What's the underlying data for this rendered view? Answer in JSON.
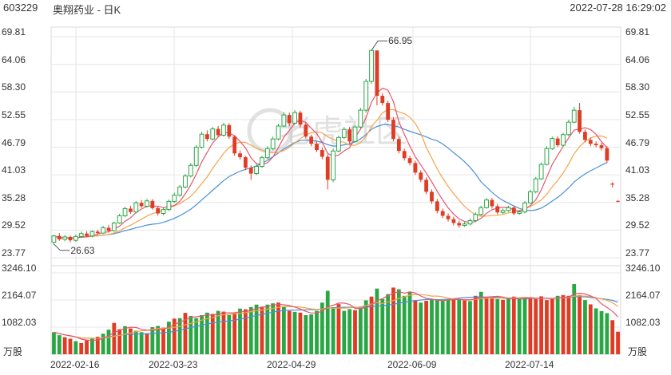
{
  "header": {
    "code": "603229",
    "name": "奥翔药业 - 日K",
    "timestamp": "2022-07-28 16:29:02"
  },
  "watermark": "老虎社区",
  "colors": {
    "up": "#e03b24",
    "down": "#2aa745",
    "ma5": "#e8556b",
    "ma10": "#f2a44b",
    "ma20": "#4a90d9",
    "grid": "#e6e6e6"
  },
  "chart_data": {
    "type": "candlestick",
    "price_axis": {
      "labels": [
        "69.81",
        "64.06",
        "58.30",
        "52.55",
        "46.79",
        "41.03",
        "35.28",
        "29.52",
        "23.77"
      ],
      "max": 69.81,
      "min": 23.77
    },
    "volume_axis": {
      "labels": [
        "3246.10",
        "2164.07",
        "1082.03"
      ],
      "max": 3246.1,
      "unit": "万股"
    },
    "x_labels": [
      "2022-02-16",
      "2022-03-23",
      "2022-04-29",
      "2022-06-09",
      "2022-07-14"
    ],
    "annotations": [
      {
        "label": "66.95",
        "value": 66.95
      },
      {
        "label": "26.63",
        "value": 26.63
      }
    ],
    "candles": [
      [
        27.0,
        28.3,
        28.6,
        26.63
      ],
      [
        28.3,
        27.6,
        28.9,
        27.3
      ],
      [
        27.6,
        28.1,
        28.5,
        27.2
      ],
      [
        28.1,
        27.4,
        28.4,
        27.0
      ],
      [
        27.4,
        28.2,
        28.6,
        27.1
      ],
      [
        28.2,
        28.8,
        29.2,
        27.9
      ],
      [
        28.8,
        28.3,
        29.3,
        28.0
      ],
      [
        28.3,
        29.2,
        29.5,
        28.0
      ],
      [
        29.2,
        28.9,
        29.6,
        28.5
      ],
      [
        28.9,
        30.0,
        30.4,
        28.7
      ],
      [
        30.0,
        29.4,
        30.6,
        29.0
      ],
      [
        29.4,
        31.0,
        31.3,
        29.2
      ],
      [
        31.0,
        32.5,
        32.9,
        30.8
      ],
      [
        32.5,
        34.0,
        34.4,
        32.2
      ],
      [
        34.0,
        33.3,
        34.6,
        32.9
      ],
      [
        33.3,
        35.2,
        35.6,
        33.0
      ],
      [
        35.2,
        34.5,
        35.8,
        34.1
      ],
      [
        34.5,
        35.6,
        36.0,
        34.2
      ],
      [
        35.6,
        34.1,
        36.0,
        33.8
      ],
      [
        34.1,
        33.0,
        34.5,
        32.5
      ],
      [
        33.0,
        33.8,
        34.3,
        32.6
      ],
      [
        33.8,
        35.5,
        35.9,
        33.5
      ],
      [
        35.5,
        36.8,
        37.3,
        35.2
      ],
      [
        36.8,
        38.5,
        38.9,
        36.5
      ],
      [
        38.5,
        40.8,
        41.2,
        38.2
      ],
      [
        40.8,
        43.0,
        43.5,
        40.5
      ],
      [
        43.0,
        46.8,
        47.2,
        42.7
      ],
      [
        46.8,
        49.5,
        50.0,
        46.5
      ],
      [
        49.5,
        48.5,
        50.3,
        48.0
      ],
      [
        48.5,
        50.6,
        51.0,
        48.2
      ],
      [
        50.6,
        49.3,
        51.2,
        48.9
      ],
      [
        49.3,
        51.4,
        51.9,
        49.0
      ],
      [
        51.4,
        49.0,
        51.8,
        48.5
      ],
      [
        49.0,
        45.5,
        49.3,
        45.0
      ],
      [
        45.5,
        44.7,
        46.1,
        44.2
      ],
      [
        44.7,
        42.5,
        45.0,
        42.0
      ],
      [
        42.5,
        41.3,
        43.0,
        40.0
      ],
      [
        41.3,
        42.8,
        43.3,
        41.0
      ],
      [
        42.8,
        44.6,
        45.0,
        42.5
      ],
      [
        44.6,
        46.5,
        47.0,
        44.3
      ],
      [
        46.5,
        48.5,
        49.0,
        46.2
      ],
      [
        48.5,
        51.2,
        51.7,
        48.2
      ],
      [
        51.2,
        53.5,
        54.1,
        51.0
      ],
      [
        53.5,
        51.8,
        54.0,
        51.2
      ],
      [
        51.8,
        54.0,
        54.5,
        51.5
      ],
      [
        54.0,
        51.5,
        54.4,
        50.9
      ],
      [
        51.5,
        49.0,
        52.0,
        48.6
      ],
      [
        49.0,
        47.5,
        49.4,
        47.0
      ],
      [
        47.5,
        46.2,
        48.0,
        45.8
      ],
      [
        46.2,
        44.8,
        46.7,
        44.3
      ],
      [
        44.8,
        40.0,
        45.3,
        38.0
      ],
      [
        40.0,
        46.0,
        46.5,
        39.5
      ],
      [
        46.0,
        48.8,
        49.2,
        45.7
      ],
      [
        48.8,
        50.5,
        51.0,
        48.5
      ],
      [
        50.5,
        48.0,
        51.0,
        47.5
      ],
      [
        48.0,
        51.0,
        51.4,
        47.8
      ],
      [
        51.0,
        54.5,
        55.0,
        50.7
      ],
      [
        54.5,
        60.5,
        61.0,
        54.0
      ],
      [
        60.5,
        66.95,
        66.95,
        60.0
      ],
      [
        66.95,
        57.5,
        66.5,
        55.5
      ],
      [
        57.5,
        56.0,
        58.0,
        55.5
      ],
      [
        56.0,
        52.5,
        56.5,
        52.0
      ],
      [
        52.5,
        48.5,
        53.0,
        48.0
      ],
      [
        48.5,
        46.0,
        49.0,
        45.5
      ],
      [
        46.0,
        44.5,
        46.5,
        44.0
      ],
      [
        44.5,
        43.5,
        45.0,
        43.0
      ],
      [
        43.5,
        41.5,
        44.0,
        41.0
      ],
      [
        41.5,
        40.0,
        42.0,
        39.5
      ],
      [
        40.0,
        37.5,
        40.5,
        37.0
      ],
      [
        37.5,
        35.5,
        38.0,
        35.0
      ],
      [
        35.5,
        33.5,
        36.0,
        33.0
      ],
      [
        33.5,
        32.5,
        34.0,
        32.0
      ],
      [
        32.5,
        31.8,
        33.0,
        31.3
      ],
      [
        31.8,
        31.0,
        32.3,
        30.5
      ],
      [
        31.0,
        30.5,
        31.5,
        30.0
      ],
      [
        30.5,
        30.8,
        31.2,
        30.2
      ],
      [
        30.8,
        31.5,
        31.9,
        30.5
      ],
      [
        31.5,
        32.8,
        33.2,
        31.2
      ],
      [
        32.8,
        34.2,
        34.6,
        32.5
      ],
      [
        34.2,
        35.8,
        36.2,
        34.0
      ],
      [
        35.8,
        34.5,
        36.2,
        34.0
      ],
      [
        34.5,
        33.2,
        35.0,
        32.8
      ],
      [
        33.2,
        33.6,
        34.0,
        32.9
      ],
      [
        33.6,
        34.2,
        34.6,
        33.3
      ],
      [
        34.2,
        33.0,
        34.6,
        32.6
      ],
      [
        33.0,
        33.3,
        33.7,
        32.7
      ],
      [
        33.3,
        35.2,
        35.6,
        33.0
      ],
      [
        35.2,
        37.5,
        37.9,
        35.0
      ],
      [
        37.5,
        40.2,
        40.6,
        37.2
      ],
      [
        40.2,
        43.2,
        43.6,
        40.0
      ],
      [
        43.2,
        46.5,
        47.0,
        43.0
      ],
      [
        46.5,
        48.6,
        49.0,
        46.2
      ],
      [
        48.6,
        47.2,
        49.1,
        46.8
      ],
      [
        47.2,
        49.4,
        49.8,
        46.9
      ],
      [
        49.4,
        52.0,
        52.5,
        49.1
      ],
      [
        52.0,
        54.5,
        55.2,
        51.8
      ],
      [
        54.5,
        50.0,
        56.0,
        49.6
      ],
      [
        50.0,
        48.3,
        50.5,
        47.8
      ],
      [
        48.3,
        47.5,
        48.8,
        47.0
      ],
      [
        47.5,
        47.2,
        48.0,
        46.8
      ],
      [
        47.2,
        46.6,
        47.7,
        46.1
      ],
      [
        46.6,
        44.0,
        47.0,
        43.5
      ],
      [
        39.2,
        39.0,
        39.5,
        38.4
      ],
      [
        35.6,
        35.5,
        35.8,
        35.3
      ]
    ],
    "volume": [
      880,
      760,
      680,
      620,
      520,
      450,
      560,
      620,
      700,
      820,
      980,
      1250,
      1000,
      1120,
      1030,
      940,
      880,
      840,
      1080,
      1130,
      1060,
      1300,
      1420,
      1440,
      1650,
      1530,
      1440,
      1560,
      1660,
      1610,
      1730,
      1700,
      1560,
      1670,
      1820,
      1790,
      1880,
      1980,
      1900,
      1980,
      2030,
      2060,
      1900,
      1730,
      1690,
      1660,
      1560,
      1590,
      1730,
      2060,
      2530,
      1880,
      2000,
      1730,
      1800,
      1760,
      1840,
      2150,
      2300,
      2620,
      2200,
      2400,
      2660,
      2590,
      2330,
      2470,
      2160,
      2060,
      2130,
      2190,
      2200,
      2130,
      2160,
      2230,
      2200,
      2160,
      2120,
      2330,
      2490,
      2290,
      2240,
      2200,
      2170,
      2230,
      2300,
      2200,
      2270,
      2230,
      2200,
      2310,
      2160,
      2200,
      2330,
      2360,
      2330,
      2800,
      2360,
      2160,
      1990,
      1830,
      1720,
      1640,
      1360,
      900
    ],
    "volume_colors": [
      1,
      1,
      0,
      0,
      1,
      0,
      0,
      1,
      0,
      1,
      1,
      0,
      0,
      1,
      0,
      1,
      1,
      0,
      1,
      1,
      0,
      1,
      0,
      1,
      0,
      1,
      1,
      1,
      1,
      0,
      1,
      0,
      1,
      0,
      1,
      0,
      1,
      1,
      0,
      1,
      1,
      0,
      1,
      0,
      1,
      0,
      1,
      1,
      1,
      1,
      1,
      1,
      0,
      1,
      1,
      0,
      1,
      1,
      0,
      1,
      1,
      1,
      0,
      1,
      1,
      1,
      0,
      1,
      0,
      1,
      1,
      1,
      1,
      0,
      1,
      0,
      1,
      0,
      1,
      0,
      0,
      1,
      0,
      1,
      0,
      1,
      1,
      0,
      0,
      0,
      0,
      0,
      1,
      0,
      0,
      1,
      0,
      1,
      0,
      1,
      1,
      1,
      0,
      0
    ]
  }
}
